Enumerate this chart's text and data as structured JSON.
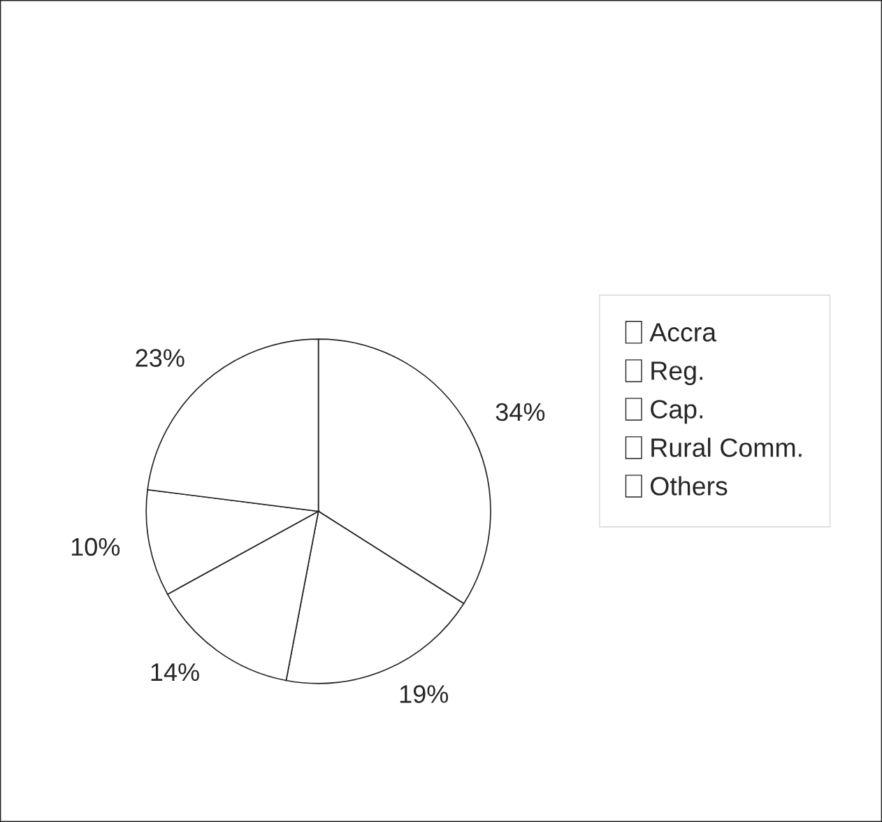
{
  "chart_data": {
    "type": "pie",
    "categories": [
      "Accra",
      "Reg.",
      "Cap.",
      "Rural Comm.",
      "Others"
    ],
    "values": [
      34,
      19,
      14,
      10,
      23
    ],
    "value_labels": [
      "34%",
      "19%",
      "14%",
      "10%",
      "23%"
    ],
    "colors": [
      "#ffffff",
      "#ffffff",
      "#ffffff",
      "#ffffff",
      "#ffffff"
    ],
    "legend": "right"
  }
}
